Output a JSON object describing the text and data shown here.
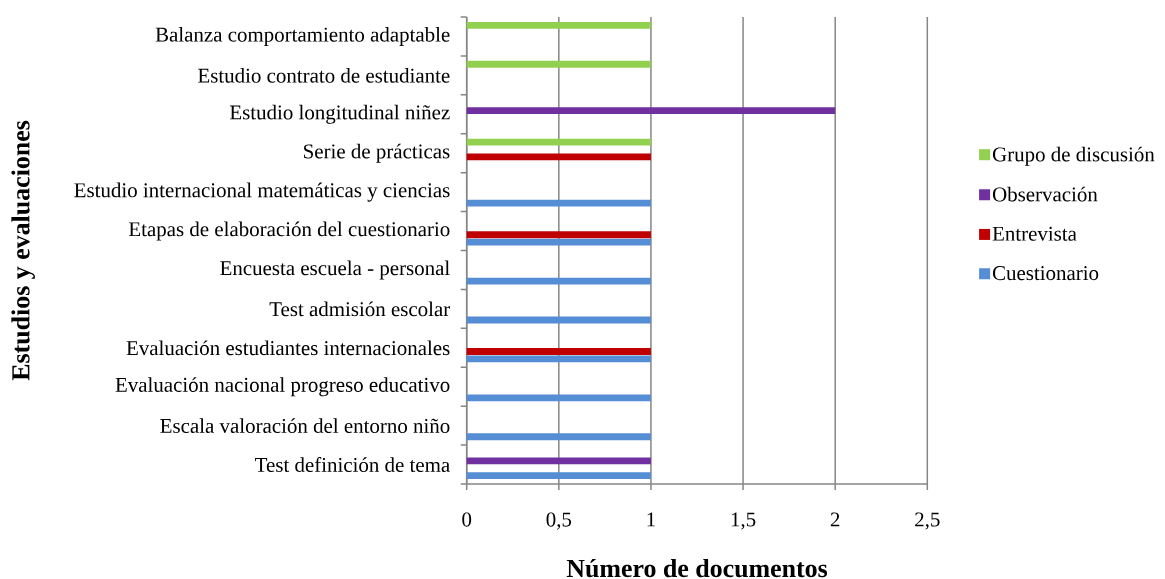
{
  "chart_data": {
    "type": "bar",
    "orientation": "horizontal",
    "xlabel": "Número de documentos",
    "ylabel": "Estudios y evaluaciones",
    "categories": [
      "Balanza comportamiento adaptable",
      "Estudio contrato de estudiante",
      "Estudio longitudinal niñez",
      "Serie de prácticas",
      "Estudio internacional matemáticas y ciencias",
      "Etapas de elaboración del cuestionario",
      "Encuesta escuela - personal",
      "Test admisión escolar",
      "Evaluación estudiantes internacionales",
      "Evaluación nacional progreso educativo",
      "Escala valoración del entorno niño",
      "Test definición de tema"
    ],
    "series": [
      {
        "name": "Cuestionario",
        "color": "#558ED5",
        "values": [
          null,
          null,
          null,
          null,
          1,
          1,
          1,
          1,
          1,
          1,
          1,
          1
        ]
      },
      {
        "name": "Entrevista",
        "color": "#C00000",
        "values": [
          null,
          null,
          null,
          1,
          null,
          1,
          null,
          null,
          1,
          null,
          null,
          null
        ]
      },
      {
        "name": "Observación",
        "color": "#7030A0",
        "values": [
          null,
          null,
          2,
          null,
          null,
          null,
          null,
          null,
          null,
          null,
          null,
          1
        ]
      },
      {
        "name": "Grupo de discusión",
        "color": "#92D050",
        "values": [
          1,
          1,
          null,
          1,
          null,
          null,
          null,
          null,
          null,
          null,
          null,
          null
        ]
      }
    ],
    "xlim": [
      0,
      2.5
    ],
    "xticks": [
      0,
      {
        "value": 0.5,
        "label": "0,5"
      },
      1,
      {
        "value": 1.5,
        "label": "1,5"
      },
      2,
      {
        "value": 2.5,
        "label": "2,5"
      }
    ],
    "grid": "x",
    "legend": "right"
  }
}
